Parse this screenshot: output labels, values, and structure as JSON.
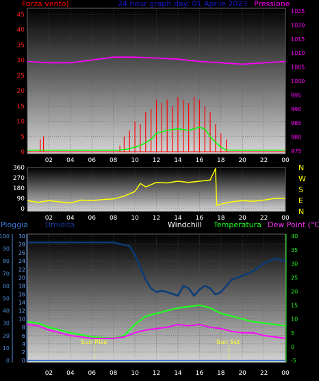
{
  "header": {
    "wind_label": "Forza vento)",
    "title": "24 hour graph day: 01 Aprile 2023",
    "pressure_label": "Pressione"
  },
  "lower_header": {
    "pioggia": "Pioggia",
    "umidita": "Umidita",
    "windchill": "Windchill",
    "temperatura": "Temperatura",
    "dewpoint": "Dew Point (°C)"
  },
  "annotations": {
    "sun_rise": "Sun Rise",
    "sun_set": "Sun Set"
  },
  "compass": [
    "N",
    "W",
    "S",
    "E",
    "N"
  ],
  "colors": {
    "wind": "#ff0000",
    "wind_avg": "#00ff00",
    "pressure": "#ff00ff",
    "direction": "#ffff00",
    "rain": "#3a78c8",
    "humidity": "#0a3c78",
    "temperature": "#22ff22",
    "dewpoint": "#ff00ff",
    "rain_axis": "#4f8fd8",
    "temp_axis": "#22ee22"
  },
  "x_ticks": [
    "02",
    "04",
    "06",
    "08",
    "10",
    "12",
    "14",
    "16",
    "18",
    "20",
    "22",
    "00"
  ],
  "chart_data": [
    {
      "type": "line",
      "panel": "wind-pressure",
      "title": "24 hour graph day: 01 Aprile 2023",
      "x_unit": "hour of day",
      "y_left": {
        "label": "Forza vento)",
        "ticks": [
          0,
          5,
          10,
          15,
          20,
          25,
          30,
          35,
          40,
          45
        ],
        "range": [
          0,
          47
        ]
      },
      "y_right": {
        "label": "Pressione",
        "ticks": [
          975,
          980,
          985,
          990,
          995,
          1000,
          1005,
          1010,
          1015,
          1020,
          1025
        ],
        "range": [
          974,
          1026
        ]
      },
      "series": [
        {
          "name": "Forza vento)",
          "axis": "left",
          "style": "bars",
          "x": [
            1.2,
            1.5,
            8.6,
            9.0,
            9.5,
            10.0,
            10.5,
            11.0,
            11.5,
            12.0,
            12.5,
            13.0,
            13.5,
            14.0,
            14.5,
            15.0,
            15.5,
            16.0,
            16.5,
            17.0,
            17.5,
            18.0,
            18.5
          ],
          "values": [
            4,
            5,
            2,
            5,
            7,
            10,
            9,
            13,
            14,
            17,
            16,
            17,
            15,
            18,
            17,
            16,
            18,
            17,
            15,
            13,
            9,
            6,
            4
          ]
        },
        {
          "name": "wind average",
          "axis": "left",
          "style": "line",
          "x": [
            0,
            8.5,
            9.5,
            10.5,
            11.0,
            11.5,
            12.0,
            13.0,
            14.0,
            15.0,
            16.0,
            16.5,
            17.0,
            17.5,
            18.0,
            18.5,
            24
          ],
          "values": [
            0.5,
            0.5,
            1.0,
            2.0,
            3.0,
            4.0,
            6.0,
            7.0,
            7.5,
            7.0,
            8.0,
            7.5,
            5.0,
            3.0,
            1.5,
            0.5,
            0.5
          ]
        },
        {
          "name": "Pressione",
          "axis": "right",
          "style": "line",
          "x": [
            0,
            2,
            4,
            6,
            8,
            10,
            12,
            14,
            16,
            18,
            20,
            22,
            24
          ],
          "values": [
            1007,
            1006.5,
            1006.5,
            1007.5,
            1008.5,
            1008.5,
            1008.2,
            1007.8,
            1007,
            1006.5,
            1006,
            1006.5,
            1007
          ]
        }
      ]
    },
    {
      "type": "line",
      "panel": "wind-direction",
      "x_unit": "hour of day",
      "y_left": {
        "ticks": [
          0,
          90,
          180,
          270,
          360
        ],
        "range": [
          0,
          360
        ]
      },
      "y_right": {
        "ticks": [
          "N",
          "W",
          "S",
          "E",
          "N"
        ]
      },
      "series": [
        {
          "name": "direction",
          "x": [
            0,
            1,
            2,
            3,
            4,
            5,
            6,
            7,
            8,
            9,
            9.5,
            10,
            10.5,
            11,
            12,
            13,
            14,
            15,
            16,
            17,
            17.5,
            17.6,
            18,
            19,
            20,
            21,
            22,
            23,
            24
          ],
          "values": [
            70,
            55,
            70,
            60,
            50,
            75,
            70,
            80,
            85,
            110,
            130,
            150,
            220,
            190,
            230,
            225,
            240,
            230,
            240,
            250,
            350,
            30,
            40,
            60,
            70,
            65,
            75,
            90,
            90
          ]
        }
      ]
    },
    {
      "type": "line",
      "panel": "humidity-temperature",
      "x_unit": "hour of day",
      "y_left_outer": {
        "label": "Pioggia",
        "ticks": [
          0,
          10,
          20,
          30,
          40,
          50,
          60,
          70,
          80,
          90,
          100
        ],
        "range": [
          0,
          100
        ]
      },
      "y_left_inner": {
        "label": "Umidita",
        "ticks": [
          0,
          2,
          4,
          6,
          8,
          10,
          12,
          14,
          16,
          18,
          20,
          22,
          24,
          26,
          28,
          30
        ],
        "range": [
          0,
          30
        ]
      },
      "y_right": {
        "label": "Dew Point (°C)",
        "ticks": [
          -5,
          0,
          5,
          10,
          15,
          20,
          25,
          30,
          35,
          40
        ],
        "range": [
          -5,
          40
        ]
      },
      "series": [
        {
          "name": "Umidita",
          "axis": "left_outer",
          "x": [
            0,
            2,
            4,
            6,
            8,
            9,
            9.5,
            10,
            10.5,
            11,
            11.5,
            12,
            12.5,
            13,
            14,
            14.5,
            15,
            15.5,
            16,
            16.5,
            17,
            17.5,
            18,
            18.5,
            19,
            20,
            21,
            22,
            23,
            24
          ],
          "values": [
            95,
            95,
            95,
            95,
            95,
            93,
            92,
            85,
            75,
            65,
            58,
            55,
            56,
            55,
            52,
            60,
            58,
            52,
            57,
            60,
            58,
            53,
            55,
            60,
            65,
            68,
            72,
            78,
            82,
            80
          ]
        },
        {
          "name": "Temperatura",
          "axis": "right",
          "x": [
            0,
            1,
            2,
            4,
            6,
            8,
            9,
            10,
            11,
            12,
            13,
            14,
            15,
            16,
            17,
            18,
            19,
            20,
            21,
            22,
            23,
            24
          ],
          "values": [
            9,
            8.5,
            7,
            5,
            3.5,
            3,
            4,
            8,
            11,
            12,
            13,
            14,
            14.5,
            15,
            14,
            12,
            11,
            10,
            9,
            8.5,
            8,
            7.5
          ]
        },
        {
          "name": "Dew Point (°C)",
          "axis": "right",
          "x": [
            0,
            1,
            2,
            4,
            6,
            8,
            9,
            10,
            11,
            12,
            13,
            14,
            15,
            16,
            17,
            18,
            19,
            20,
            21,
            22,
            23,
            24
          ],
          "values": [
            8,
            7.5,
            6,
            4,
            3,
            3,
            3.5,
            5,
            6,
            6.5,
            7,
            8,
            7.5,
            8,
            7,
            6.5,
            5.5,
            5,
            5,
            4,
            3.5,
            3
          ]
        },
        {
          "name": "Pioggia",
          "axis": "left_outer",
          "x": [
            0,
            24
          ],
          "values": [
            0,
            0
          ]
        }
      ]
    }
  ]
}
